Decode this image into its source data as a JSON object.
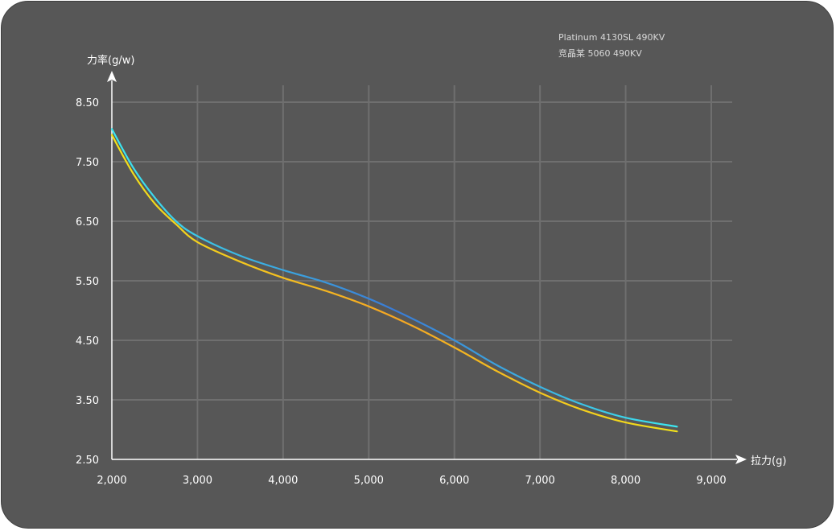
{
  "chart_data": {
    "type": "line",
    "xlabel": "拉力(g)",
    "ylabel": "力率(g/w)",
    "xlim": [
      2000,
      9000
    ],
    "ylim": [
      2.5,
      8.5
    ],
    "x_ticks": [
      "2,000",
      "3,000",
      "4,000",
      "5,000",
      "6,000",
      "7,000",
      "8,000",
      "9,000"
    ],
    "y_ticks": [
      "8.50",
      "7.50",
      "6.50",
      "5.50",
      "4.50",
      "3.50",
      "2.50"
    ],
    "grid": true,
    "legend_position": "top-right",
    "series": [
      {
        "name": "Platinum 4130SL 490KV",
        "color": "#3ce8f0",
        "color_start": "#3a7bd5",
        "x": [
          2000,
          2250,
          2500,
          2750,
          3000,
          3500,
          4000,
          4500,
          5000,
          5500,
          6000,
          6500,
          7000,
          7500,
          8000,
          8600
        ],
        "y": [
          8.05,
          7.4,
          6.9,
          6.5,
          6.25,
          5.92,
          5.68,
          5.47,
          5.2,
          4.87,
          4.5,
          4.08,
          3.72,
          3.42,
          3.2,
          3.05
        ]
      },
      {
        "name": "竞晶某 5060 490KV",
        "color": "#f2e21a",
        "color_start": "#f5a623",
        "x": [
          2000,
          2250,
          2500,
          2750,
          3000,
          3500,
          4000,
          4500,
          5000,
          5500,
          6000,
          6500,
          7000,
          7500,
          8000,
          8600
        ],
        "y": [
          7.95,
          7.3,
          6.8,
          6.45,
          6.15,
          5.82,
          5.55,
          5.33,
          5.07,
          4.75,
          4.38,
          3.98,
          3.62,
          3.33,
          3.12,
          2.97
        ]
      }
    ]
  }
}
